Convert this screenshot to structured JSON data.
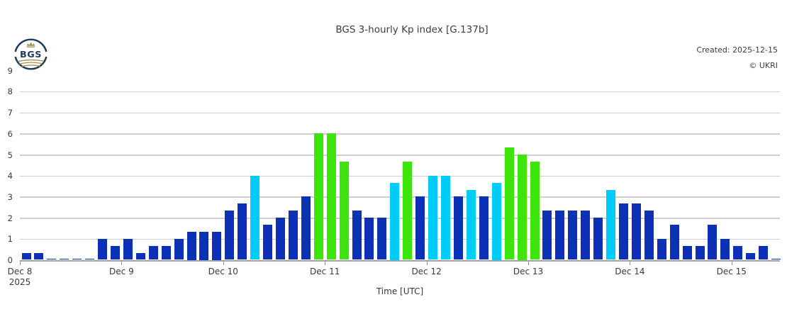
{
  "header": {
    "title": "BGS 3-hourly Kp index [G.137b]",
    "created": "Created: 2025-12-15",
    "copyright": "© UKRI",
    "logo_text": "BGS"
  },
  "chart_data": {
    "type": "bar",
    "title": "BGS 3-hourly Kp index [G.137b]",
    "xlabel": "Time [UTC]",
    "ylabel": "",
    "ylim": [
      0,
      9
    ],
    "yticks": [
      0,
      1,
      2,
      3,
      4,
      5,
      6,
      7,
      8,
      9
    ],
    "grid": true,
    "legend_position": "none",
    "interval_hours": 3,
    "bars_per_day": 8,
    "day_labels": [
      "Dec 8",
      "Dec 9",
      "Dec 10",
      "Dec 11",
      "Dec 12",
      "Dec 13",
      "Dec 14",
      "Dec 15"
    ],
    "year_label": "2025",
    "values": [
      0.33,
      0.33,
      0,
      0,
      0,
      0,
      1,
      0.67,
      1,
      0.33,
      0.67,
      0.67,
      1,
      1.33,
      1.33,
      1.33,
      2.33,
      2.67,
      4,
      1.67,
      2,
      2.33,
      3,
      6,
      6,
      4.67,
      2.33,
      2,
      2,
      3.67,
      4.67,
      3,
      4,
      4,
      3,
      3.33,
      3,
      3.67,
      5.33,
      5,
      4.67,
      2.33,
      2.33,
      2.33,
      2.33,
      2,
      3.33,
      2.67,
      2.67,
      2.33,
      1,
      1.67,
      0.67,
      0.67,
      1.67,
      1,
      0.67,
      0.33,
      0.67,
      0
    ],
    "bar_levels": [
      "quiet",
      "quiet",
      "quiet",
      "quiet",
      "quiet",
      "quiet",
      "quiet",
      "quiet",
      "quiet",
      "quiet",
      "quiet",
      "quiet",
      "quiet",
      "quiet",
      "quiet",
      "quiet",
      "quiet",
      "quiet",
      "active",
      "quiet",
      "quiet",
      "quiet",
      "quiet",
      "storm",
      "storm",
      "storm",
      "quiet",
      "quiet",
      "quiet",
      "active",
      "storm",
      "quiet",
      "active",
      "active",
      "quiet",
      "active",
      "quiet",
      "active",
      "storm",
      "storm",
      "storm",
      "quiet",
      "quiet",
      "quiet",
      "quiet",
      "quiet",
      "active",
      "quiet",
      "quiet",
      "quiet",
      "quiet",
      "quiet",
      "quiet",
      "quiet",
      "quiet",
      "quiet",
      "quiet",
      "quiet",
      "quiet",
      "quiet"
    ],
    "color_map": {
      "quiet": "#0d31b6",
      "active": "#00ccf8",
      "storm": "#3de50c"
    },
    "logo_colors": {
      "navy": "#1c3a5a",
      "gold": "#a88d52"
    }
  }
}
